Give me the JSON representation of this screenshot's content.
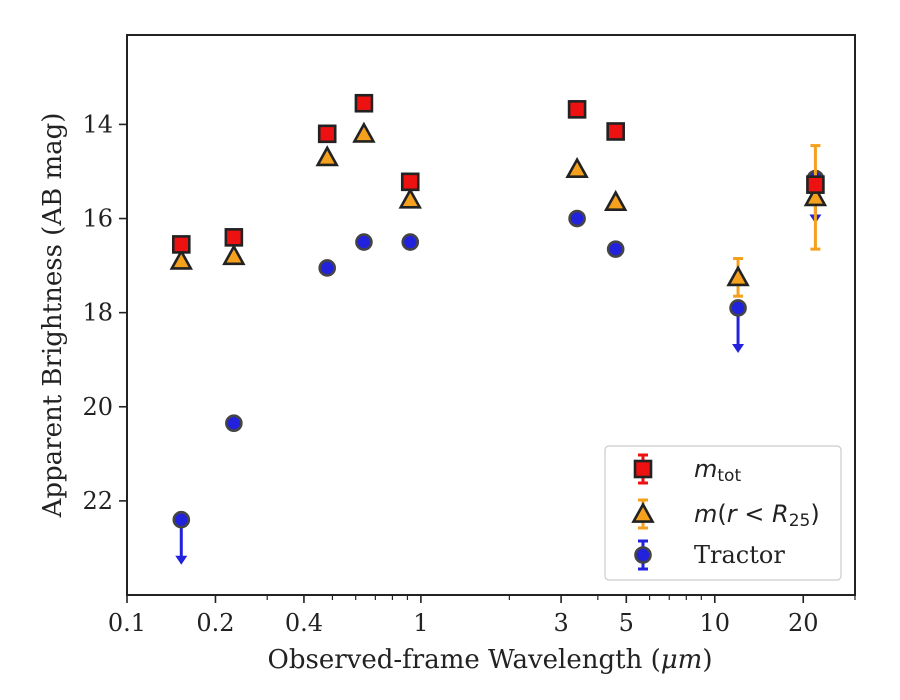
{
  "chart_data": {
    "type": "scatter",
    "xlabel_main": "Observed-frame Wavelength (",
    "xlabel_unit": "μm",
    "xlabel_end": ")",
    "ylabel": "Apparent Brightness (AB mag)",
    "x_scale": "log",
    "xlim": [
      0.1,
      30
    ],
    "ylim": [
      24.0,
      12.1
    ],
    "y_inverted": true,
    "grid": false,
    "legend_position": "lower-right",
    "x_ticks": [
      {
        "value": 0.1,
        "label": "0.1"
      },
      {
        "value": 0.2,
        "label": "0.2"
      },
      {
        "value": 0.4,
        "label": "0.4"
      },
      {
        "value": 1,
        "label": "1"
      },
      {
        "value": 3,
        "label": "3"
      },
      {
        "value": 5,
        "label": "5"
      },
      {
        "value": 10,
        "label": "10"
      },
      {
        "value": 20,
        "label": "20"
      }
    ],
    "y_ticks": [
      {
        "value": 14,
        "label": "14"
      },
      {
        "value": 16,
        "label": "16"
      },
      {
        "value": 18,
        "label": "18"
      },
      {
        "value": 20,
        "label": "20"
      },
      {
        "value": 22,
        "label": "22"
      }
    ],
    "series": [
      {
        "name": "m_tot",
        "legend_label": {
          "m": "m",
          "sub": "tot"
        },
        "marker": "square",
        "face_color": "#ee1111",
        "edge_color": "#222222",
        "errorbar_color": "#ee1111",
        "points": [
          {
            "x": 0.153,
            "y": 16.55,
            "err": 0
          },
          {
            "x": 0.231,
            "y": 16.4,
            "err": 0
          },
          {
            "x": 0.48,
            "y": 14.2,
            "err": 0
          },
          {
            "x": 0.64,
            "y": 13.55,
            "err": 0
          },
          {
            "x": 0.92,
            "y": 15.22,
            "err": 0
          },
          {
            "x": 3.4,
            "y": 13.68,
            "err": 0
          },
          {
            "x": 4.6,
            "y": 14.15,
            "err": 0
          },
          {
            "x": 22,
            "y": 15.28,
            "err": 0
          }
        ]
      },
      {
        "name": "m(r < R25)",
        "legend_label": {
          "m": "m",
          "open": "(",
          "r": "r",
          "lt": " < ",
          "R": "R",
          "sub": "25",
          "close": ")"
        },
        "marker": "triangle",
        "face_color": "#f5a11e",
        "edge_color": "#222222",
        "errorbar_color": "#f5a11e",
        "points": [
          {
            "x": 0.153,
            "y": 16.9,
            "err": 0
          },
          {
            "x": 0.231,
            "y": 16.8,
            "err": 0
          },
          {
            "x": 0.48,
            "y": 14.7,
            "err": 0
          },
          {
            "x": 0.64,
            "y": 14.2,
            "err": 0
          },
          {
            "x": 0.92,
            "y": 15.6,
            "err": 0
          },
          {
            "x": 3.4,
            "y": 14.95,
            "err": 0
          },
          {
            "x": 4.6,
            "y": 15.65,
            "err": 0
          },
          {
            "x": 12,
            "y": 17.25,
            "err": 0.4
          },
          {
            "x": 22,
            "y": 15.55,
            "err": 1.1
          }
        ]
      },
      {
        "name": "Tractor",
        "legend_label": {
          "text": "Tractor"
        },
        "marker": "circle",
        "face_color": "#2222dd",
        "edge_color": "#444444",
        "errorbar_color": "#2222dd",
        "points": [
          {
            "x": 0.153,
            "y": 22.4,
            "err": 0,
            "upper_limit": true
          },
          {
            "x": 0.231,
            "y": 20.35,
            "err": 0
          },
          {
            "x": 0.48,
            "y": 17.05,
            "err": 0
          },
          {
            "x": 0.64,
            "y": 16.5,
            "err": 0
          },
          {
            "x": 0.92,
            "y": 16.5,
            "err": 0
          },
          {
            "x": 3.4,
            "y": 16.0,
            "err": 0
          },
          {
            "x": 4.6,
            "y": 16.65,
            "err": 0
          },
          {
            "x": 12,
            "y": 17.9,
            "err": 0,
            "upper_limit": true
          },
          {
            "x": 22,
            "y": 15.15,
            "err": 0,
            "upper_limit": true
          }
        ]
      }
    ]
  }
}
